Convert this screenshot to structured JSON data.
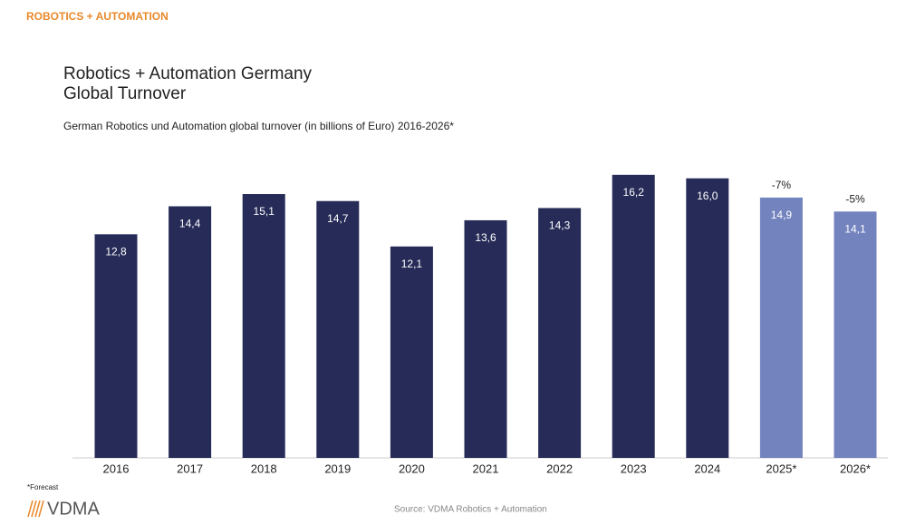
{
  "chart_data": {
    "type": "bar",
    "header": "ROBOTICS + AUTOMATION",
    "title": [
      "Robotics + Automation Germany",
      "Global Turnover"
    ],
    "subtitle": "German Robotics und Automation global turnover (in billions of Euro) 2016-2026*",
    "categories": [
      "2016",
      "2017",
      "2018",
      "2019",
      "2020",
      "2021",
      "2022",
      "2023",
      "2024",
      "2025*",
      "2026*"
    ],
    "values": [
      12.8,
      14.4,
      15.1,
      14.7,
      12.1,
      13.6,
      14.3,
      16.2,
      16.0,
      14.9,
      14.1
    ],
    "value_labels": [
      "12,8",
      "14,4",
      "15,1",
      "14,7",
      "12,1",
      "13,6",
      "14,3",
      "16,2",
      "16,0",
      "14,9",
      "14,1"
    ],
    "change_labels": [
      null,
      null,
      null,
      null,
      null,
      null,
      null,
      null,
      null,
      "-7%",
      "-5%"
    ],
    "colors": [
      "#262b57",
      "#262b57",
      "#262b57",
      "#262b57",
      "#262b57",
      "#262b57",
      "#262b57",
      "#262b57",
      "#262b57",
      "#7383be",
      "#7383be"
    ],
    "footnote": "*Forecast",
    "source": "Source: VDMA Robotics + Automation",
    "logo": "VDMA"
  }
}
